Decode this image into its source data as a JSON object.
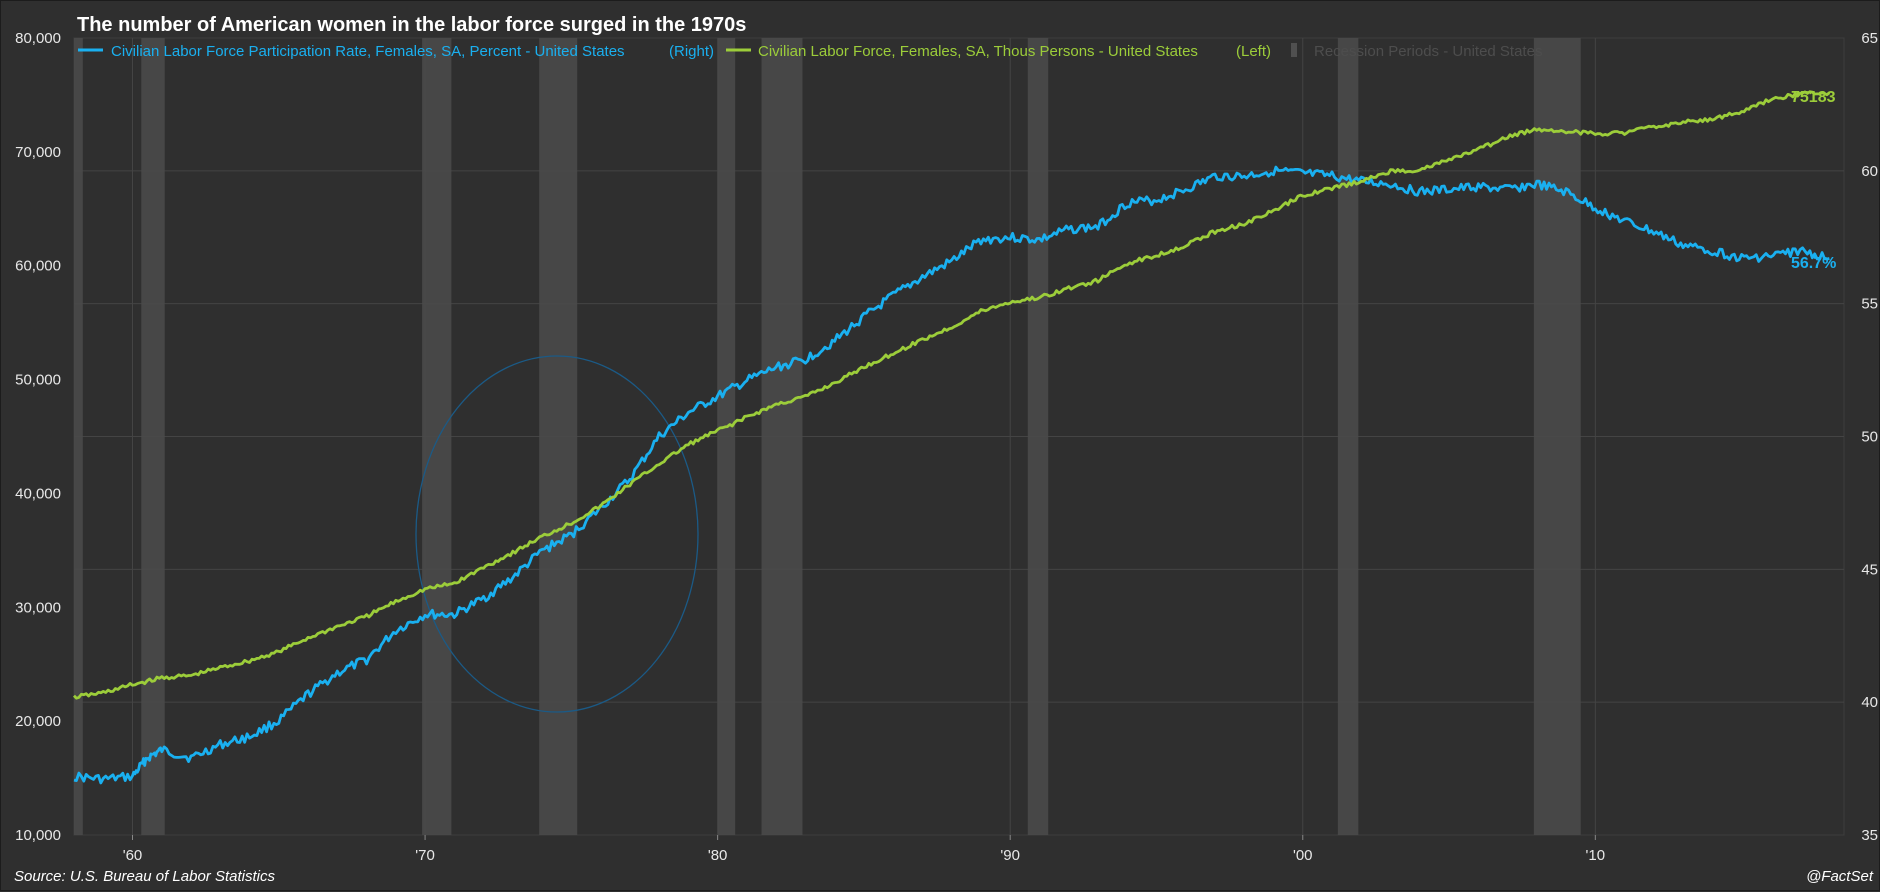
{
  "chart_data": {
    "type": "line",
    "title": "The number of American women in the labor force surged in the 1970s",
    "source": "Source: U.S. Bureau of Labor Statistics",
    "brand": "@FactSet",
    "xlim": [
      1958,
      2018.5
    ],
    "x_ticks": [
      {
        "value": 1960,
        "label": "'60"
      },
      {
        "value": 1970,
        "label": "'70"
      },
      {
        "value": 1980,
        "label": "'80"
      },
      {
        "value": 1990,
        "label": "'90"
      },
      {
        "value": 2000,
        "label": "'00"
      },
      {
        "value": 2010,
        "label": "'10"
      }
    ],
    "left_axis": {
      "min": 10000,
      "max": 80000,
      "ticks": [
        "80,000",
        "70,000",
        "60,000",
        "50,000",
        "40,000",
        "30,000",
        "20,000",
        "10,000"
      ],
      "tick_values": [
        80000,
        70000,
        60000,
        50000,
        40000,
        30000,
        20000,
        10000
      ]
    },
    "right_axis": {
      "min": 35,
      "max": 65,
      "ticks": [
        "65",
        "60",
        "55",
        "50",
        "45",
        "40",
        "35"
      ],
      "tick_values": [
        65,
        60,
        55,
        50,
        45,
        40,
        35
      ]
    },
    "grid": true,
    "legend_placement": "top-left",
    "series": [
      {
        "name": "Civilian Labor Force Participation Rate, Females, SA, Percent - United States",
        "axis_label": "(Right)",
        "axis": "right",
        "color": "#1ab0f0",
        "end_label": "56.7%",
        "x": [
          1958.0,
          1959.0,
          1960.0,
          1960.5,
          1961.0,
          1962.0,
          1963.0,
          1964.0,
          1965.0,
          1966.0,
          1967.0,
          1968.0,
          1969.0,
          1970.0,
          1971.0,
          1972.0,
          1973.0,
          1974.0,
          1975.0,
          1976.0,
          1977.0,
          1978.0,
          1979.0,
          1980.0,
          1981.0,
          1982.0,
          1983.0,
          1984.0,
          1985.0,
          1986.0,
          1987.0,
          1988.0,
          1989.0,
          1990.0,
          1991.0,
          1992.0,
          1993.0,
          1994.0,
          1995.0,
          1996.0,
          1997.0,
          1998.0,
          1999.0,
          2000.0,
          2001.0,
          2002.0,
          2003.0,
          2004.0,
          2005.0,
          2006.0,
          2007.0,
          2008.0,
          2009.0,
          2010.0,
          2011.0,
          2012.0,
          2013.0,
          2014.0,
          2015.0,
          2016.0,
          2017.0,
          2018.0
        ],
        "values": [
          37.2,
          37.1,
          37.2,
          37.9,
          38.2,
          37.9,
          38.4,
          38.7,
          39.3,
          40.3,
          41.1,
          41.6,
          42.7,
          43.3,
          43.3,
          43.9,
          44.7,
          45.7,
          46.3,
          47.3,
          48.4,
          50.0,
          50.9,
          51.5,
          52.1,
          52.6,
          52.9,
          53.6,
          54.5,
          55.3,
          56.0,
          56.6,
          57.4,
          57.5,
          57.4,
          57.8,
          57.9,
          58.8,
          58.9,
          59.3,
          59.8,
          59.8,
          60.0,
          59.9,
          59.8,
          59.6,
          59.5,
          59.2,
          59.3,
          59.4,
          59.3,
          59.5,
          59.2,
          58.6,
          58.1,
          57.7,
          57.2,
          57.0,
          56.7,
          56.8,
          57.0,
          56.7
        ]
      },
      {
        "name": "Civilian Labor Force, Females, SA, Thous Persons - United States",
        "axis_label": "(Left)",
        "axis": "left",
        "color": "#9ccd3a",
        "end_label": "75183",
        "x": [
          1958.0,
          1959.0,
          1960.0,
          1961.0,
          1962.0,
          1963.0,
          1964.0,
          1965.0,
          1966.0,
          1967.0,
          1968.0,
          1969.0,
          1970.0,
          1971.0,
          1972.0,
          1973.0,
          1974.0,
          1975.0,
          1976.0,
          1977.0,
          1978.0,
          1979.0,
          1980.0,
          1981.0,
          1982.0,
          1983.0,
          1984.0,
          1985.0,
          1986.0,
          1987.0,
          1988.0,
          1989.0,
          1990.0,
          1991.0,
          1992.0,
          1993.0,
          1994.0,
          1995.0,
          1996.0,
          1997.0,
          1998.0,
          1999.0,
          2000.0,
          2001.0,
          2002.0,
          2003.0,
          2004.0,
          2005.0,
          2006.0,
          2007.0,
          2008.0,
          2009.0,
          2010.0,
          2011.0,
          2012.0,
          2013.0,
          2014.0,
          2015.0,
          2016.0,
          2017.0,
          2018.0
        ],
        "values": [
          22100,
          22500,
          23200,
          23800,
          24000,
          24700,
          25300,
          26100,
          27300,
          28300,
          29200,
          30500,
          31600,
          32100,
          33500,
          34800,
          36200,
          37400,
          38900,
          40800,
          42600,
          44300,
          45500,
          46700,
          47800,
          48500,
          49700,
          51100,
          52300,
          53500,
          54600,
          56000,
          56800,
          57200,
          58000,
          58700,
          60200,
          60900,
          61800,
          63000,
          63700,
          64800,
          66200,
          66800,
          67400,
          68300,
          68400,
          69300,
          70200,
          71300,
          72000,
          71800,
          71600,
          71700,
          72200,
          72600,
          72900,
          73500,
          74600,
          75100,
          75183
        ]
      }
    ],
    "recessions": {
      "name": "Recession Periods - United States",
      "periods": [
        [
          1957.6,
          1958.3
        ],
        [
          1960.3,
          1961.1
        ],
        [
          1969.9,
          1970.9
        ],
        [
          1973.9,
          1975.2
        ],
        [
          1980.0,
          1980.6
        ],
        [
          1981.5,
          1982.9
        ],
        [
          1990.6,
          1991.3
        ],
        [
          2001.2,
          2001.9
        ],
        [
          2007.9,
          2009.5
        ]
      ]
    }
  }
}
